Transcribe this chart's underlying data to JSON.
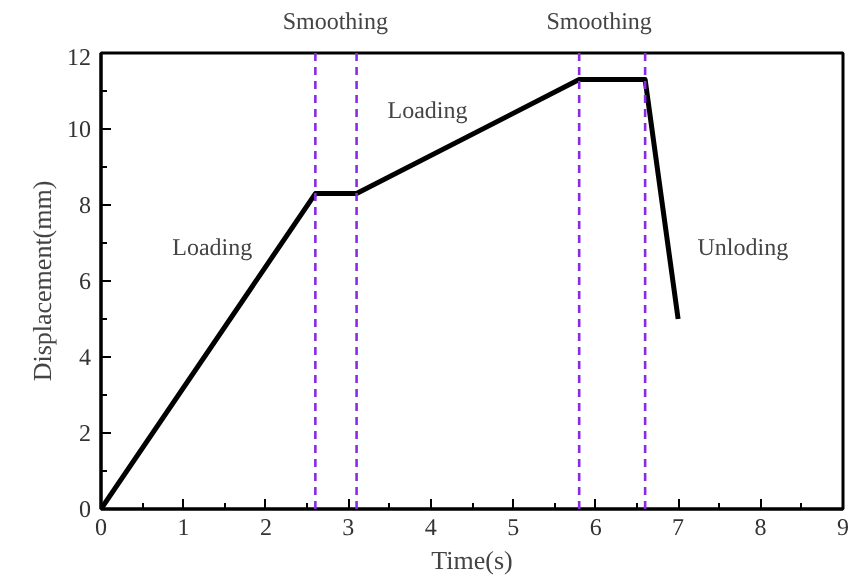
{
  "chart_data": {
    "type": "line",
    "xlabel": "Time(s)",
    "ylabel": "Displacement(mm)",
    "x": [
      0,
      2.6,
      3.1,
      5.8,
      6.6,
      7.0
    ],
    "series": [
      {
        "color": "#000000",
        "values": [
          0,
          8.3,
          8.3,
          11.3,
          11.3,
          5.0
        ]
      }
    ],
    "xlim": [
      0,
      9
    ],
    "xticks": [
      0,
      1,
      2,
      3,
      4,
      5,
      6,
      7,
      8,
      9
    ],
    "ylim": [
      0,
      12
    ],
    "yticks": [
      0,
      2,
      4,
      6,
      8,
      10,
      12
    ],
    "grid": false,
    "marker": "none",
    "line_style": "solid",
    "ref_lines": [
      {
        "axis": "x",
        "value": 2.6,
        "label": "Smoothing",
        "color": "#8a2be2",
        "line_style": "dashed"
      },
      {
        "axis": "x",
        "value": 3.1,
        "color": "#8a2be2",
        "line_style": "dashed"
      },
      {
        "axis": "x",
        "value": 5.8,
        "label": "Smoothing",
        "color": "#8a2be2",
        "line_style": "dashed"
      },
      {
        "axis": "x",
        "value": 6.6,
        "color": "#8a2be2",
        "line_style": "dashed"
      }
    ],
    "annotations": [
      "Loading",
      "Loading",
      "Unloding"
    ]
  }
}
